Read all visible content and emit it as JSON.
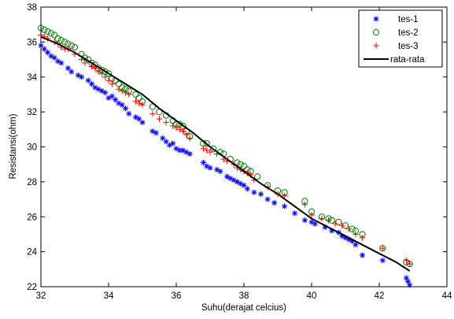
{
  "chart_data": {
    "type": "scatter",
    "title": "",
    "xlabel": "Suhu(derajat celcius)",
    "ylabel": "Resistansi(ohm)",
    "xlim": [
      32,
      44
    ],
    "ylim": [
      22,
      38
    ],
    "xticks": [
      32,
      34,
      36,
      38,
      40,
      42,
      44
    ],
    "yticks": [
      22,
      24,
      26,
      28,
      30,
      32,
      34,
      36,
      38
    ],
    "grid": false,
    "legend_position": "top-right",
    "series": [
      {
        "name": "tes-1",
        "marker": "asterisk",
        "color": "#0000ff",
        "x": [
          32.0,
          32.1,
          32.2,
          32.3,
          32.4,
          32.5,
          32.6,
          32.8,
          32.9,
          33.1,
          33.2,
          33.4,
          33.5,
          33.6,
          33.7,
          33.8,
          33.9,
          34.0,
          34.1,
          34.2,
          34.3,
          34.4,
          34.5,
          34.6,
          34.8,
          34.9,
          35.0,
          35.3,
          35.4,
          35.6,
          35.7,
          35.8,
          35.9,
          36.0,
          36.1,
          36.2,
          36.3,
          36.4,
          36.8,
          36.9,
          37.0,
          37.2,
          37.3,
          37.5,
          37.6,
          37.7,
          37.8,
          37.9,
          38.0,
          38.1,
          38.3,
          38.5,
          38.7,
          38.9,
          39.2,
          39.5,
          39.8,
          40.0,
          40.1,
          40.4,
          40.6,
          40.8,
          40.9,
          41.0,
          41.1,
          41.2,
          41.3,
          41.5,
          42.1,
          42.8,
          42.85,
          42.9
        ],
        "y": [
          35.8,
          35.6,
          35.4,
          35.2,
          35.1,
          34.9,
          34.8,
          34.5,
          34.3,
          34.1,
          34.0,
          33.8,
          33.6,
          33.4,
          33.3,
          33.2,
          33.1,
          32.8,
          32.9,
          32.7,
          32.5,
          32.4,
          32.2,
          31.9,
          31.7,
          31.6,
          31.4,
          30.9,
          30.8,
          30.5,
          30.3,
          30.1,
          30.2,
          29.9,
          29.8,
          29.8,
          29.7,
          29.6,
          29.1,
          28.9,
          28.8,
          28.7,
          28.6,
          28.3,
          28.2,
          28.1,
          28.0,
          27.9,
          27.8,
          27.6,
          27.4,
          27.3,
          27.0,
          26.8,
          26.6,
          26.2,
          25.8,
          25.7,
          25.6,
          25.4,
          25.2,
          25.1,
          24.9,
          24.8,
          24.7,
          24.6,
          24.4,
          23.8,
          23.5,
          22.5,
          22.3,
          22.1
        ]
      },
      {
        "name": "tes-2",
        "marker": "circle",
        "color": "#008000",
        "x": [
          32.0,
          32.1,
          32.2,
          32.3,
          32.4,
          32.5,
          32.6,
          32.7,
          32.8,
          32.9,
          33.0,
          33.2,
          33.3,
          33.4,
          33.5,
          33.6,
          33.7,
          33.8,
          33.9,
          34.0,
          34.1,
          34.2,
          34.3,
          34.4,
          34.5,
          34.6,
          34.8,
          34.9,
          35.0,
          35.3,
          35.5,
          35.7,
          35.9,
          36.0,
          36.1,
          36.2,
          36.3,
          36.4,
          36.8,
          36.9,
          37.1,
          37.3,
          37.4,
          37.6,
          37.8,
          37.9,
          38.0,
          38.1,
          38.2,
          38.4,
          38.7,
          39.0,
          39.2,
          39.8,
          40.0,
          40.3,
          40.5,
          40.6,
          40.8,
          41.0,
          41.2,
          41.3,
          41.5,
          42.1,
          42.8,
          42.9
        ],
        "y": [
          36.8,
          36.7,
          36.6,
          36.5,
          36.4,
          36.2,
          36.1,
          36.0,
          35.9,
          35.8,
          35.7,
          35.3,
          35.1,
          35.0,
          34.8,
          34.7,
          34.5,
          34.4,
          34.3,
          34.2,
          33.9,
          33.8,
          33.6,
          33.4,
          33.3,
          33.2,
          33.0,
          32.8,
          32.6,
          32.3,
          32.0,
          31.8,
          31.5,
          31.3,
          31.3,
          31.2,
          30.9,
          30.6,
          30.2,
          30.2,
          29.9,
          29.7,
          29.6,
          29.3,
          29.1,
          29.0,
          28.9,
          28.7,
          28.6,
          28.3,
          27.8,
          27.5,
          27.4,
          26.9,
          26.3,
          26.0,
          25.9,
          25.8,
          25.7,
          25.5,
          25.3,
          25.2,
          25.0,
          24.2,
          23.4,
          23.3
        ]
      },
      {
        "name": "tes-3",
        "marker": "plus",
        "color": "#ff0000",
        "x": [
          32.0,
          32.1,
          32.2,
          32.4,
          32.5,
          32.6,
          32.7,
          32.8,
          33.0,
          33.2,
          33.3,
          33.5,
          33.6,
          33.7,
          33.8,
          33.9,
          34.0,
          34.1,
          34.3,
          34.4,
          34.5,
          34.6,
          34.8,
          34.9,
          35.0,
          35.3,
          35.5,
          35.7,
          35.9,
          36.0,
          36.1,
          36.2,
          36.3,
          36.4,
          36.8,
          36.9,
          37.0,
          37.2,
          37.4,
          37.5,
          37.7,
          37.8,
          37.9,
          38.0,
          38.1,
          38.2,
          38.3,
          38.7,
          39.0,
          39.2,
          39.8,
          40.0,
          40.3,
          40.5,
          40.7,
          40.9,
          41.1,
          41.3,
          41.5,
          42.1,
          42.8,
          42.9
        ],
        "y": [
          36.4,
          36.3,
          36.2,
          36.0,
          35.9,
          35.7,
          35.6,
          35.6,
          35.3,
          35.0,
          34.8,
          34.6,
          34.5,
          34.3,
          34.2,
          34.0,
          33.8,
          33.6,
          33.3,
          33.2,
          33.1,
          33.0,
          32.6,
          32.5,
          32.4,
          31.9,
          31.6,
          31.4,
          31.2,
          31.1,
          31.0,
          30.9,
          30.7,
          30.5,
          29.9,
          29.8,
          29.7,
          29.6,
          29.3,
          29.2,
          29.0,
          28.8,
          28.7,
          28.6,
          28.5,
          28.4,
          28.1,
          27.7,
          27.3,
          27.2,
          26.7,
          26.1,
          25.9,
          25.8,
          25.6,
          25.5,
          25.3,
          25.0,
          24.8,
          24.2,
          23.5,
          23.3
        ]
      },
      {
        "name": "rata-rata",
        "marker": "line",
        "color": "#000000",
        "x": [
          32.0,
          32.5,
          33.0,
          33.5,
          34.0,
          34.5,
          35.0,
          35.5,
          36.0,
          36.5,
          37.0,
          37.5,
          38.0,
          38.5,
          39.0,
          39.5,
          40.0,
          40.5,
          41.0,
          41.5,
          42.0,
          42.5,
          42.9
        ],
        "y": [
          36.3,
          35.9,
          35.4,
          34.8,
          34.2,
          33.6,
          33.0,
          32.2,
          31.5,
          30.8,
          30.0,
          29.3,
          28.6,
          27.9,
          27.3,
          26.6,
          25.9,
          25.4,
          24.9,
          24.4,
          23.9,
          23.4,
          22.9
        ]
      }
    ]
  }
}
